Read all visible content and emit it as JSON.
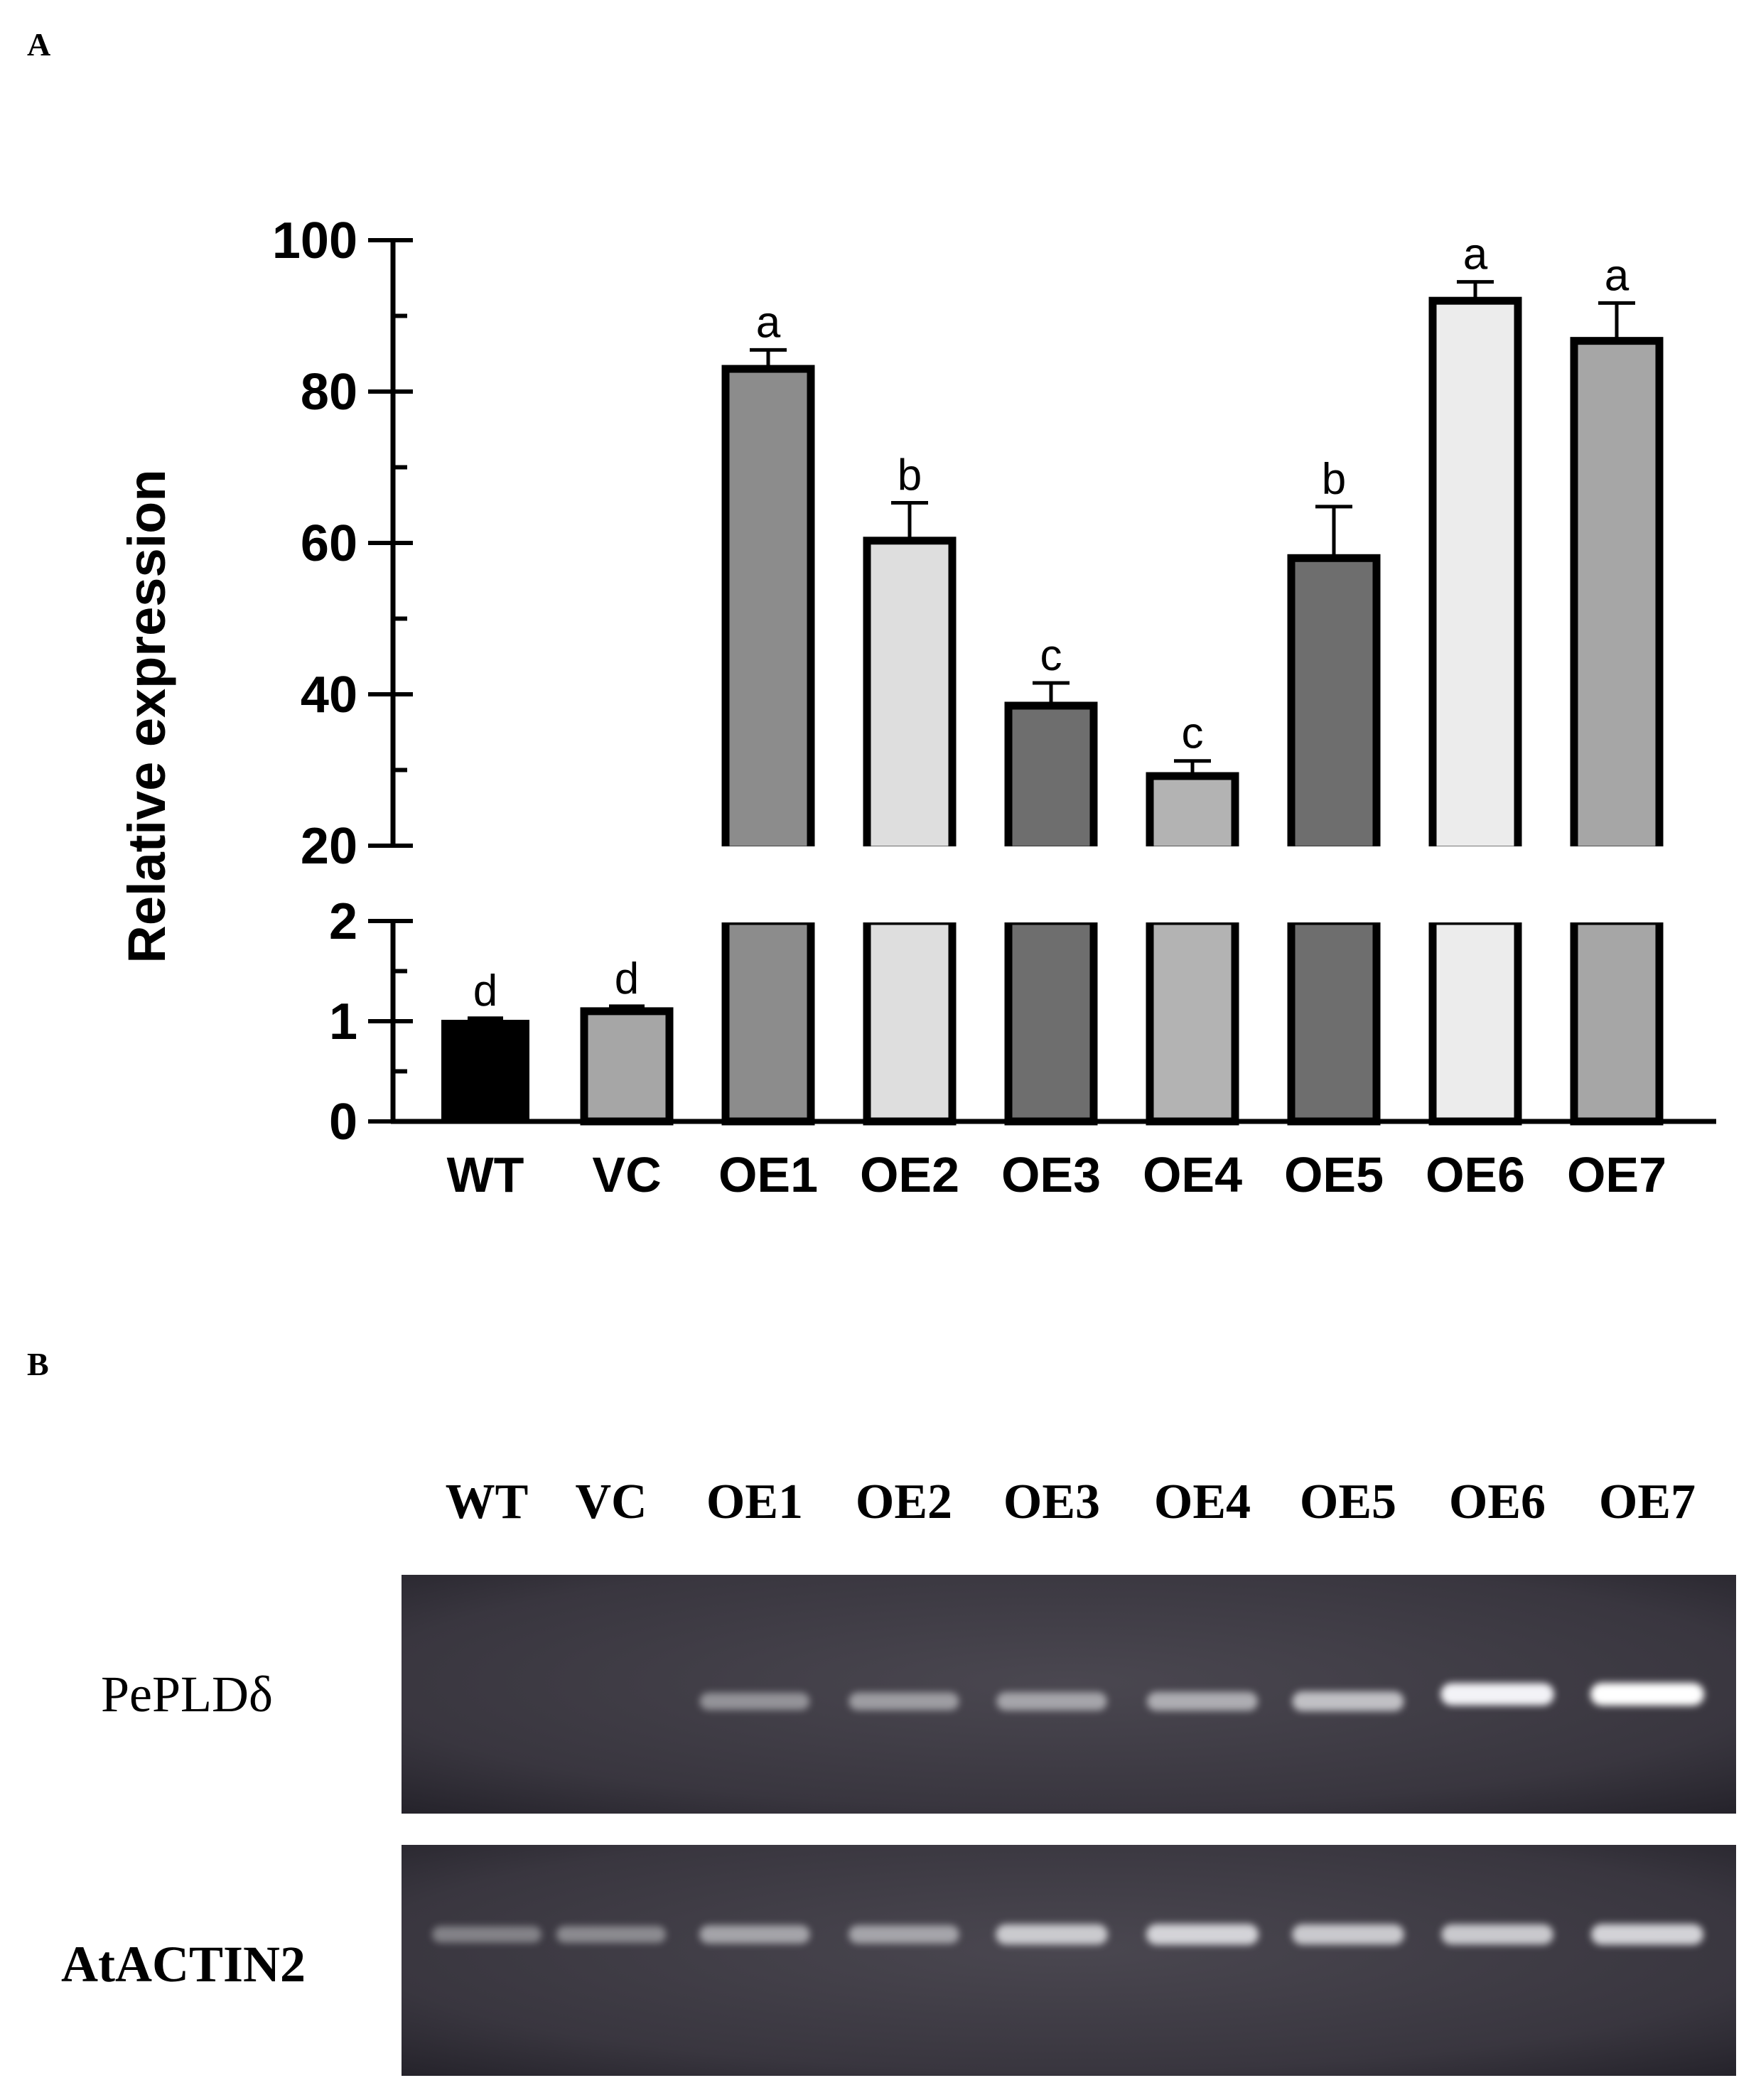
{
  "panels": {
    "a": "A",
    "b": "B"
  },
  "chart_data": {
    "type": "bar",
    "title": "",
    "xlabel": "",
    "ylabel": "Relative expression",
    "categories": [
      "WT",
      "VC",
      "OE1",
      "OE2",
      "OE3",
      "OE4",
      "OE5",
      "OE6",
      "OE7"
    ],
    "values": [
      1.0,
      1.1,
      83,
      60.3,
      38.5,
      29.2,
      58,
      92,
      86.7
    ],
    "errors": [
      0.03,
      0.05,
      2.5,
      5,
      3,
      2,
      6.8,
      2.5,
      5
    ],
    "significance": [
      "d",
      "d",
      "a",
      "b",
      "c",
      "c",
      "b",
      "a",
      "a"
    ],
    "fills": [
      "#000000",
      "#a6a6a6",
      "#8c8c8c",
      "#dedede",
      "#6e6e6e",
      "#b3b3b3",
      "#6e6e6e",
      "#ececec",
      "#a6a6a6"
    ],
    "ylim_lower": [
      0,
      2
    ],
    "ylim_upper": [
      20,
      100
    ],
    "y_ticks_lower": [
      "0",
      "1",
      "2"
    ],
    "y_ticks_upper": [
      "20",
      "40",
      "60",
      "80",
      "100"
    ],
    "broken_axis": true,
    "grid": false
  },
  "gel": {
    "columns": [
      "WT",
      "VC",
      "OE1",
      "OE2",
      "OE3",
      "OE4",
      "OE5",
      "OE6",
      "OE7"
    ],
    "rows": [
      {
        "label": "PePLDδ",
        "band_intensity": [
          0,
          0,
          0.45,
          0.5,
          0.55,
          0.6,
          0.7,
          0.95,
          1.0
        ]
      },
      {
        "label": "AtACTIN2",
        "band_intensity": [
          0.35,
          0.4,
          0.55,
          0.55,
          0.75,
          0.8,
          0.75,
          0.75,
          0.8
        ]
      }
    ]
  }
}
